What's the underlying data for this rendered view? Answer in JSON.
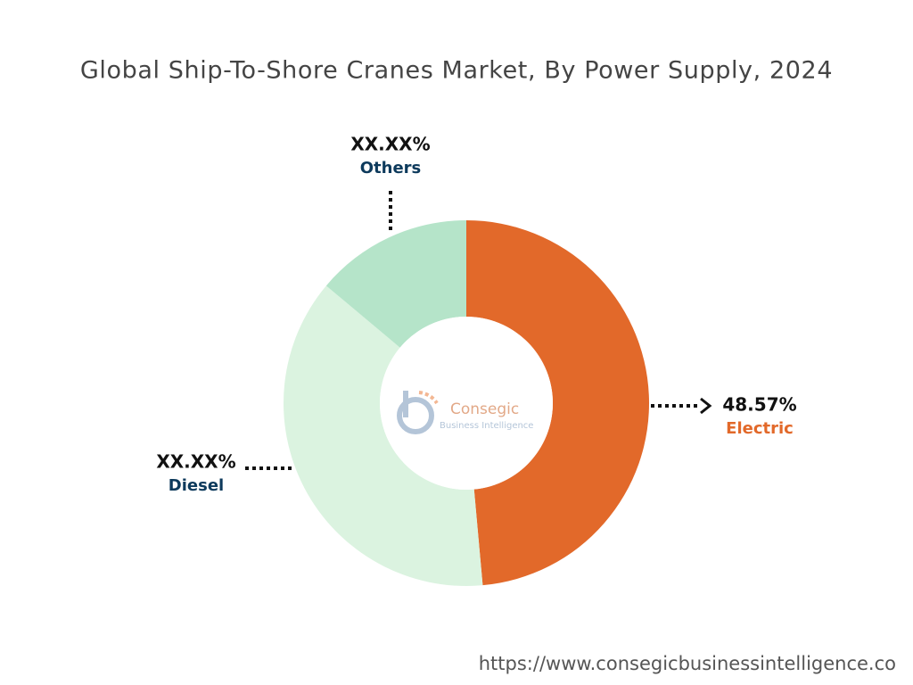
{
  "chart_data": {
    "type": "donut",
    "title": "Global Ship-To-Shore Cranes Market, By Power Supply, 2024",
    "categories": [
      "Electric",
      "Diesel",
      "Others"
    ],
    "values": [
      48.57,
      37.53,
      13.9
    ],
    "value_labels": [
      "48.57%",
      "XX.XX%",
      "XX.XX%"
    ],
    "colors": [
      "#e2692a",
      "#dbf3e0",
      "#b5e4c9"
    ],
    "label_colors": [
      "#e2692a",
      "#0d3a5c",
      "#0d3a5c"
    ]
  },
  "watermark": {
    "name": "Consegic",
    "tagline": "Business Intelligence"
  },
  "source_url": "https://www.consegicbusinessintelligence.co"
}
